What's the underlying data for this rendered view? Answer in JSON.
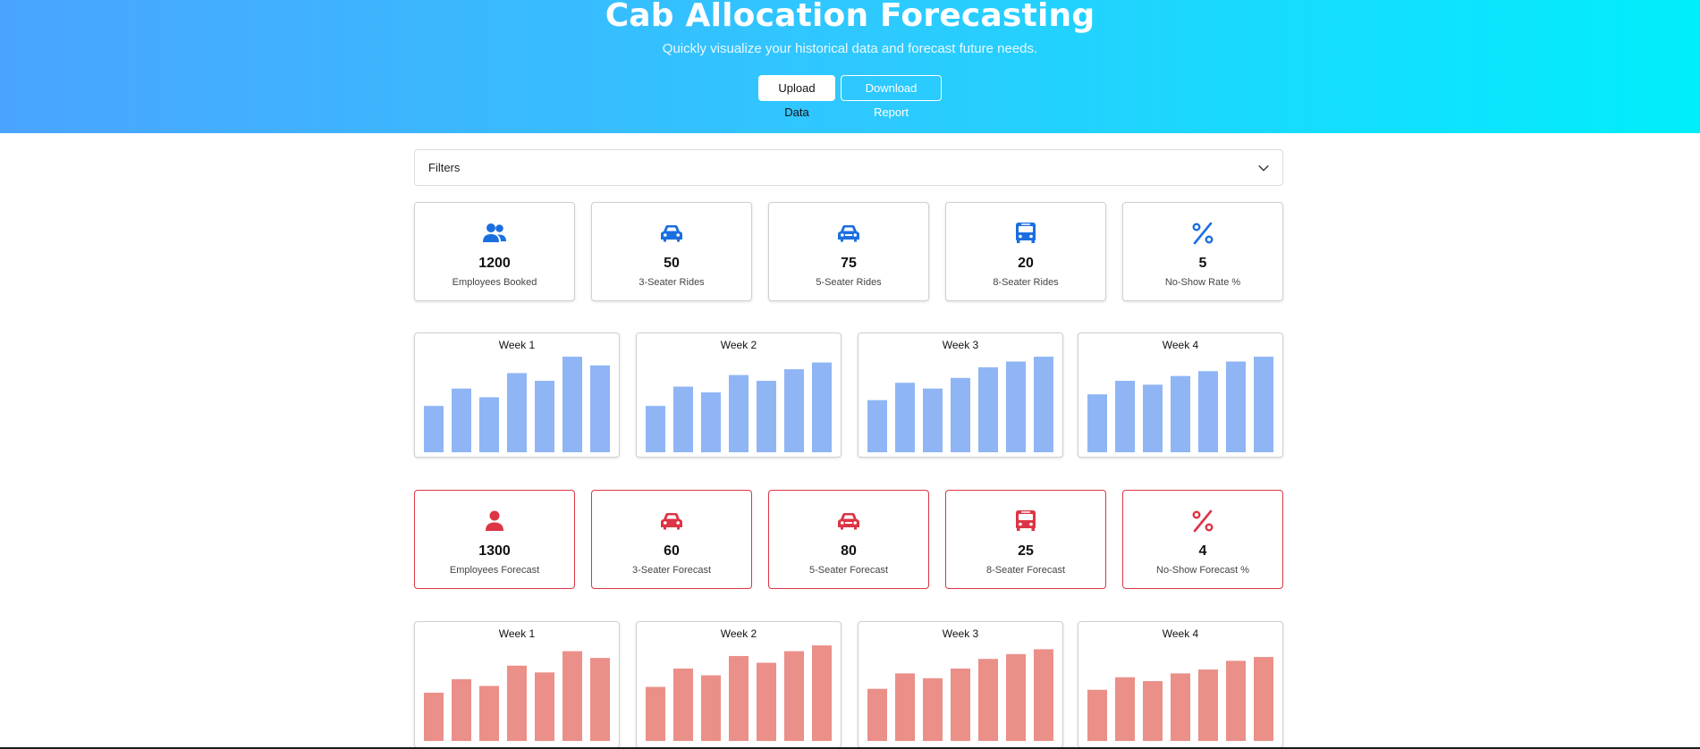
{
  "header": {
    "title": "Cab Allocation Forecasting",
    "subtitle": "Quickly visualize your historical data and forecast future needs.",
    "upload_label": "Upload Data",
    "download_label": "Download Report",
    "gradient_start": "#4aa4ff",
    "gradient_end": "#00eefc"
  },
  "filters": {
    "label": "Filters",
    "icon": "chevron-down-icon"
  },
  "historical_stats": [
    {
      "icon": "users-icon",
      "value": "1200",
      "label": "Employees Booked"
    },
    {
      "icon": "car-icon",
      "value": "50",
      "label": "3-Seater Rides"
    },
    {
      "icon": "car-icon",
      "value": "75",
      "label": "5-Seater Rides"
    },
    {
      "icon": "bus-icon",
      "value": "20",
      "label": "8-Seater Rides"
    },
    {
      "icon": "percent-icon",
      "value": "5",
      "label": "No-Show Rate %"
    }
  ],
  "forecast_stats": [
    {
      "icon": "user-icon",
      "value": "1300",
      "label": "Employees Forecast"
    },
    {
      "icon": "car-icon",
      "value": "60",
      "label": "3-Seater Forecast"
    },
    {
      "icon": "car-icon",
      "value": "80",
      "label": "5-Seater Forecast"
    },
    {
      "icon": "bus-icon",
      "value": "25",
      "label": "8-Seater Forecast"
    },
    {
      "icon": "percent-icon",
      "value": "4",
      "label": "No-Show Forecast %"
    }
  ],
  "colors": {
    "historical_accent": "#1a6fe0",
    "historical_bar": "#8fb5f5",
    "forecast_accent": "#dc3545",
    "forecast_bar": "#eb8f89"
  },
  "chart_data": [
    {
      "type": "bar",
      "group": "historical",
      "title": "Week 1",
      "ylim": [
        0,
        100
      ],
      "values": [
        48,
        66,
        57,
        82,
        74,
        99,
        90
      ]
    },
    {
      "type": "bar",
      "group": "historical",
      "title": "Week 2",
      "ylim": [
        0,
        100
      ],
      "values": [
        48,
        68,
        62,
        80,
        74,
        86,
        93
      ]
    },
    {
      "type": "bar",
      "group": "historical",
      "title": "Week 3",
      "ylim": [
        0,
        100
      ],
      "values": [
        54,
        72,
        66,
        77,
        88,
        94,
        99
      ]
    },
    {
      "type": "bar",
      "group": "historical",
      "title": "Week 4",
      "ylim": [
        0,
        100
      ],
      "values": [
        60,
        74,
        70,
        79,
        84,
        94,
        99
      ]
    },
    {
      "type": "bar",
      "group": "forecast",
      "title": "Week 1",
      "ylim": [
        0,
        100
      ],
      "values": [
        50,
        64,
        57,
        78,
        71,
        93,
        86
      ]
    },
    {
      "type": "bar",
      "group": "forecast",
      "title": "Week 2",
      "ylim": [
        0,
        100
      ],
      "values": [
        56,
        75,
        68,
        88,
        81,
        93,
        99
      ]
    },
    {
      "type": "bar",
      "group": "forecast",
      "title": "Week 3",
      "ylim": [
        0,
        100
      ],
      "values": [
        54,
        70,
        65,
        75,
        85,
        90,
        95
      ]
    },
    {
      "type": "bar",
      "group": "forecast",
      "title": "Week 4",
      "ylim": [
        0,
        100
      ],
      "values": [
        53,
        66,
        62,
        70,
        74,
        83,
        87
      ]
    }
  ]
}
